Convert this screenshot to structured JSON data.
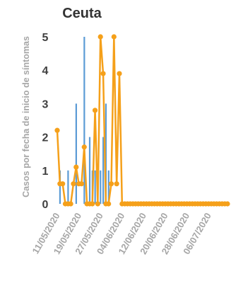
{
  "chart_data": {
    "type": "bar",
    "title": "Ceuta",
    "ylabel": "Casos por fecha de inicio de síntomas",
    "xlabel": "",
    "ylim": [
      0,
      5
    ],
    "yticks": [
      0,
      1,
      2,
      3,
      4,
      5
    ],
    "x_start": "2020-05-11",
    "x_end": "2020-07-13",
    "xtick_labels": [
      "11/05/2020",
      "19/05/2020",
      "27/05/2020",
      "04/06/2020",
      "12/06/2020",
      "20/06/2020",
      "28/06/2020",
      "06/07/2020"
    ],
    "colors": {
      "bars": "#5b9bd5",
      "line": "#f5a01a"
    },
    "bar_series": {
      "dates": [
        "2020-05-12",
        "2020-05-15",
        "2020-05-18",
        "2020-05-21",
        "2020-05-23",
        "2020-05-24",
        "2020-05-25",
        "2020-05-27",
        "2020-05-28",
        "2020-05-29",
        "2020-05-30"
      ],
      "values": [
        1,
        1,
        3,
        5,
        2,
        1,
        1,
        1,
        2,
        3,
        1
      ]
    },
    "line_series": {
      "dates": [
        "2020-05-11",
        "2020-05-12",
        "2020-05-13",
        "2020-05-14",
        "2020-05-15",
        "2020-05-16",
        "2020-05-17",
        "2020-05-18",
        "2020-05-19",
        "2020-05-20",
        "2020-05-21",
        "2020-05-22",
        "2020-05-23",
        "2020-05-24",
        "2020-05-25",
        "2020-05-26",
        "2020-05-27",
        "2020-05-28",
        "2020-05-29",
        "2020-05-30",
        "2020-05-31",
        "2020-06-01",
        "2020-06-02",
        "2020-06-03",
        "2020-06-04",
        "2020-06-05",
        "2020-06-06",
        "2020-06-07",
        "2020-06-08",
        "2020-06-09",
        "2020-06-10",
        "2020-06-11",
        "2020-06-12",
        "2020-06-13",
        "2020-06-14",
        "2020-06-15",
        "2020-06-16",
        "2020-06-17",
        "2020-06-18",
        "2020-06-19",
        "2020-06-20",
        "2020-06-21",
        "2020-06-22",
        "2020-06-23",
        "2020-06-24",
        "2020-06-25",
        "2020-06-26",
        "2020-06-27",
        "2020-06-28",
        "2020-06-29",
        "2020-06-30",
        "2020-07-01",
        "2020-07-02",
        "2020-07-03",
        "2020-07-04",
        "2020-07-05",
        "2020-07-06",
        "2020-07-07",
        "2020-07-08",
        "2020-07-09",
        "2020-07-10",
        "2020-07-11",
        "2020-07-12",
        "2020-07-13"
      ],
      "values": [
        2.2,
        0.6,
        0.6,
        0,
        0,
        0,
        0.6,
        1.1,
        0.6,
        0.6,
        1.7,
        0,
        0,
        0,
        2.8,
        0,
        5,
        3.9,
        0,
        0,
        0.6,
        5,
        0.6,
        3.9,
        0,
        0,
        0,
        0,
        0,
        0,
        0,
        0,
        0,
        0,
        0,
        0,
        0,
        0,
        0,
        0,
        0,
        0,
        0,
        0,
        0,
        0,
        0,
        0,
        0,
        0,
        0,
        0,
        0,
        0,
        0,
        0,
        0,
        0,
        0,
        0,
        0,
        0,
        0,
        0
      ]
    }
  }
}
